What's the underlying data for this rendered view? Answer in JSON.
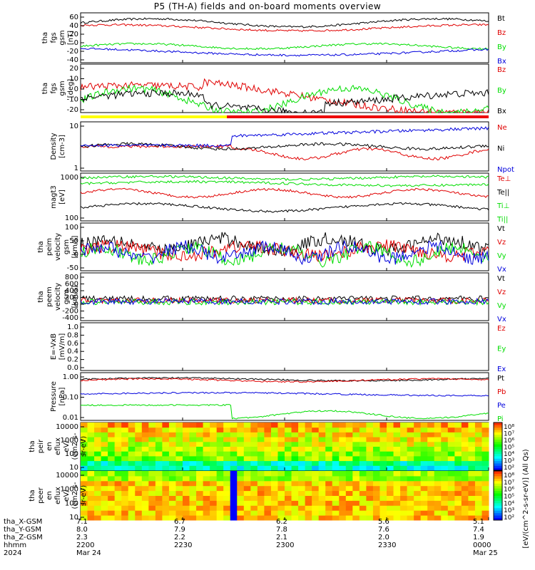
{
  "title": "P5 (TH-A) fields and on-board moments overview",
  "colors": {
    "black": "#000000",
    "red": "#e00000",
    "green": "#00dd00",
    "blue": "#0000dd",
    "yellow": "#ffff00",
    "bar_red": "#ee0000"
  },
  "chart_data": [
    {
      "type": "line",
      "ylabel": [
        "tha",
        "fgs",
        "gsm",
        "[nT]"
      ],
      "yticks": [
        "60",
        "40",
        "20",
        "0",
        "-20",
        "-40"
      ],
      "series": [
        {
          "name": "Bt"
        },
        {
          "name": "Bz"
        },
        {
          "name": "By"
        },
        {
          "name": "Bx"
        }
      ]
    },
    {
      "type": "line",
      "ylabel": [
        "tha",
        "fgs",
        "gsm",
        "[deg]"
      ],
      "yticks": [
        "20",
        "10",
        "0",
        "-10",
        "-20"
      ],
      "series": [
        {
          "name": "Bz"
        },
        {
          "name": "By"
        },
        {
          "name": "Bx"
        }
      ]
    },
    {
      "type": "line",
      "ylabel": [
        "Density",
        "[cm-3]"
      ],
      "scale": "log",
      "yticks": [
        "10",
        "1"
      ],
      "series": [
        {
          "name": "Ne"
        },
        {
          "name": "Ni"
        },
        {
          "name": "Npot"
        }
      ]
    },
    {
      "type": "line",
      "ylabel": [
        "magt3",
        "[eV]"
      ],
      "scale": "log",
      "yticks": [
        "1000",
        "100"
      ],
      "series": [
        {
          "name": "Te⊥"
        },
        {
          "name": "Te||"
        },
        {
          "name": "Ti⊥"
        },
        {
          "name": "Ti||"
        }
      ]
    },
    {
      "type": "line",
      "ylabel": [
        "tha",
        "peim",
        "velocity",
        "gsm",
        "[km/s]"
      ],
      "yticks": [
        "100",
        "50",
        "0",
        "-50"
      ],
      "series": [
        {
          "name": "Vt"
        },
        {
          "name": "Vz"
        },
        {
          "name": "Vy"
        },
        {
          "name": "Vx"
        }
      ]
    },
    {
      "type": "line",
      "ylabel": [
        "tha",
        "peem",
        "velocity",
        "gsm",
        "[km/s]"
      ],
      "yticks": [
        "800",
        "600",
        "400",
        "200",
        "0",
        "-200",
        "-400"
      ],
      "series": [
        {
          "name": "Vt"
        },
        {
          "name": "Vz"
        },
        {
          "name": "Vy"
        },
        {
          "name": "Vx"
        }
      ]
    },
    {
      "type": "line",
      "ylabel": [
        "E=-VxB",
        "[mV/m]"
      ],
      "yticks": [
        "1.0",
        "0.8",
        "0.6",
        "0.4",
        "0.2",
        "0.0"
      ],
      "series": [
        {
          "name": "Ez"
        },
        {
          "name": "Ey"
        },
        {
          "name": "Ex"
        }
      ]
    },
    {
      "type": "line",
      "ylabel": [
        "Pressure",
        "[nPa]"
      ],
      "scale": "log",
      "yticks": [
        "1.00",
        "0.10",
        "0.01"
      ],
      "series": [
        {
          "name": "Pt"
        },
        {
          "name": "Pb"
        },
        {
          "name": "Pe"
        },
        {
          "name": "Pi"
        }
      ]
    },
    {
      "type": "heatmap",
      "ylabel": [
        "tha",
        "peir",
        "en",
        "eflux",
        "eV/",
        "(cm2-s-",
        "sr-eV)"
      ],
      "yticks": [
        "10000",
        "1000",
        "100",
        "10"
      ]
    },
    {
      "type": "heatmap",
      "ylabel": [
        "tha",
        "peer",
        "en",
        "eflux",
        "eV/",
        "(cm2-s-",
        "sr-eV)"
      ],
      "yticks": [
        "10000",
        "1000",
        "100",
        "10"
      ]
    }
  ],
  "colorbar": {
    "label": "[eV/(cm^2-s-sr-eV)] (All Qs)",
    "ticks_top": [
      "10⁸",
      "10⁷",
      "10⁶",
      "10⁵",
      "10⁴",
      "10³",
      "10²"
    ],
    "ticks_bottom": [
      "10⁸",
      "10⁷",
      "10⁶",
      "10⁵",
      "10⁴",
      "10³",
      "10²"
    ]
  },
  "bottom": {
    "names": [
      "tha_X-GSM",
      "tha_Y-GSM",
      "tha_Z-GSM",
      "hhmm",
      "2024"
    ],
    "columns": [
      {
        "x": "7.1",
        "y": "8.0",
        "z": "2.3",
        "hhmm": "2200",
        "date": "Mar 24"
      },
      {
        "x": "6.7",
        "y": "7.9",
        "z": "2.2",
        "hhmm": "2230",
        "date": ""
      },
      {
        "x": "6.2",
        "y": "7.8",
        "z": "2.1",
        "hhmm": "2300",
        "date": ""
      },
      {
        "x": "5.6",
        "y": "7.6",
        "z": "2.0",
        "hhmm": "2330",
        "date": ""
      },
      {
        "x": "5.1",
        "y": "7.4",
        "z": "1.9",
        "hhmm": "0000",
        "date": "Mar 25"
      }
    ]
  }
}
